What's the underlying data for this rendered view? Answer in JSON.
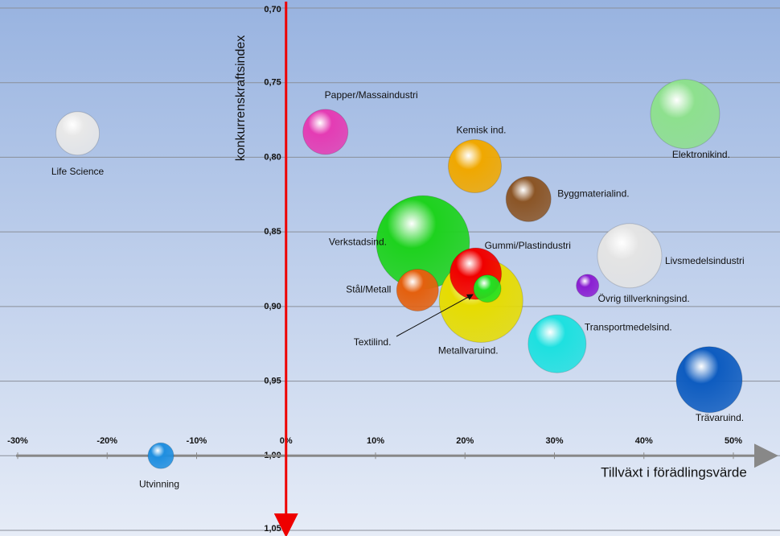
{
  "chart_data": {
    "type": "bubble",
    "xlabel": "Tillväxt i förädlingsvärde",
    "ylabel": "konkurrenskraftsindex",
    "xlim": [
      -30,
      55
    ],
    "ylim": [
      0.7,
      1.05
    ],
    "y_inverted": true,
    "x_axis_at": 1.0,
    "y_axis_at": 0,
    "grid": true,
    "xticks": [
      {
        "value": -30,
        "label": "-30%"
      },
      {
        "value": -20,
        "label": "-20%"
      },
      {
        "value": -10,
        "label": "-10%"
      },
      {
        "value": 0,
        "label": "0%"
      },
      {
        "value": 10,
        "label": "10%"
      },
      {
        "value": 20,
        "label": "20%"
      },
      {
        "value": 30,
        "label": "30%"
      },
      {
        "value": 40,
        "label": "40%"
      },
      {
        "value": 50,
        "label": "50%"
      }
    ],
    "yticks": [
      {
        "value": 0.7,
        "label": "0,70"
      },
      {
        "value": 0.75,
        "label": "0,75"
      },
      {
        "value": 0.8,
        "label": "0,80"
      },
      {
        "value": 0.85,
        "label": "0,85"
      },
      {
        "value": 0.9,
        "label": "0,90"
      },
      {
        "value": 0.95,
        "label": "0,95"
      },
      {
        "value": 1.0,
        "label": "1,00"
      },
      {
        "value": 1.05,
        "label": "1,05"
      }
    ],
    "points": [
      {
        "name": "Life Science",
        "x": -23.3,
        "y": 0.784,
        "size": 27,
        "color": "#e8e8e8"
      },
      {
        "name": "Papper/Massaindustri",
        "x": 4.4,
        "y": 0.783,
        "size": 28,
        "color": "#e43cb4"
      },
      {
        "name": "Kemisk ind.",
        "x": 21.1,
        "y": 0.806,
        "size": 33,
        "color": "#f0a800"
      },
      {
        "name": "Byggmaterialind.",
        "x": 27.1,
        "y": 0.828,
        "size": 28,
        "color": "#8b5526"
      },
      {
        "name": "Elektronikind.",
        "x": 44.6,
        "y": 0.771,
        "size": 43,
        "color": "#8ee08e"
      },
      {
        "name": "Verkstadsind.",
        "x": 15.3,
        "y": 0.857,
        "size": 58,
        "color": "#1ed21e"
      },
      {
        "name": "Livsmedelsindustri",
        "x": 38.4,
        "y": 0.866,
        "size": 40,
        "color": "#e4e4e4"
      },
      {
        "name": "Stål/Metall",
        "x": 14.7,
        "y": 0.889,
        "size": 26,
        "color": "#e4600e"
      },
      {
        "name": "Metallvaruind.",
        "x": 21.8,
        "y": 0.896,
        "size": 52,
        "color": "#e6dc00"
      },
      {
        "name": "Gummi/Plastindustri",
        "x": 21.2,
        "y": 0.878,
        "size": 32,
        "color": "#f00000"
      },
      {
        "name": "Textilind.",
        "x": 22.5,
        "y": 0.888,
        "size": 17,
        "color": "#22e022"
      },
      {
        "name": "Övrig tillverkningsind.",
        "x": 33.7,
        "y": 0.886,
        "size": 14,
        "color": "#8a1ed2"
      },
      {
        "name": "Transportmedelsind.",
        "x": 30.3,
        "y": 0.925,
        "size": 36,
        "color": "#1ee0e0"
      },
      {
        "name": "Trävaruind.",
        "x": 47.3,
        "y": 0.949,
        "size": 41,
        "color": "#0e5cc0"
      },
      {
        "name": "Utvinning",
        "x": -14.0,
        "y": 1.0,
        "size": 16,
        "color": "#1e8ee0"
      }
    ]
  }
}
